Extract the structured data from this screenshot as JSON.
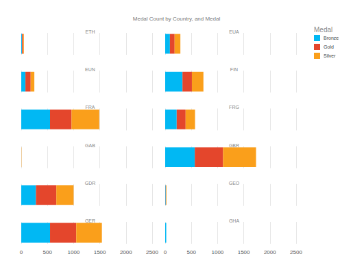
{
  "chart_data": {
    "type": "bar",
    "title": "Medal Count by Country, and Medal",
    "legend_title": "Medal",
    "legend": "right",
    "orientation": "horizontal",
    "stacked": true,
    "grid": true,
    "categories": [
      "ETH",
      "EUA",
      "EUN",
      "FIN",
      "FRA",
      "FRG",
      "GAB",
      "GBR",
      "GDR",
      "GEO",
      "GER",
      "GHA"
    ],
    "series": [
      {
        "name": "Bronze",
        "color": "#01b8f3",
        "values": [
          15,
          90,
          80,
          330,
          550,
          220,
          0,
          565,
          280,
          10,
          550,
          20
        ]
      },
      {
        "name": "Gold",
        "color": "#e4462c",
        "values": [
          20,
          90,
          100,
          180,
          410,
          170,
          0,
          540,
          390,
          5,
          500,
          0
        ]
      },
      {
        "name": "Silver",
        "color": "#fa9f1b",
        "values": [
          15,
          110,
          70,
          220,
          530,
          180,
          5,
          630,
          330,
          10,
          490,
          0
        ]
      }
    ],
    "xlim": [
      0,
      2500
    ],
    "xticks": [
      0,
      500,
      1000,
      1500,
      2000,
      2500
    ]
  }
}
